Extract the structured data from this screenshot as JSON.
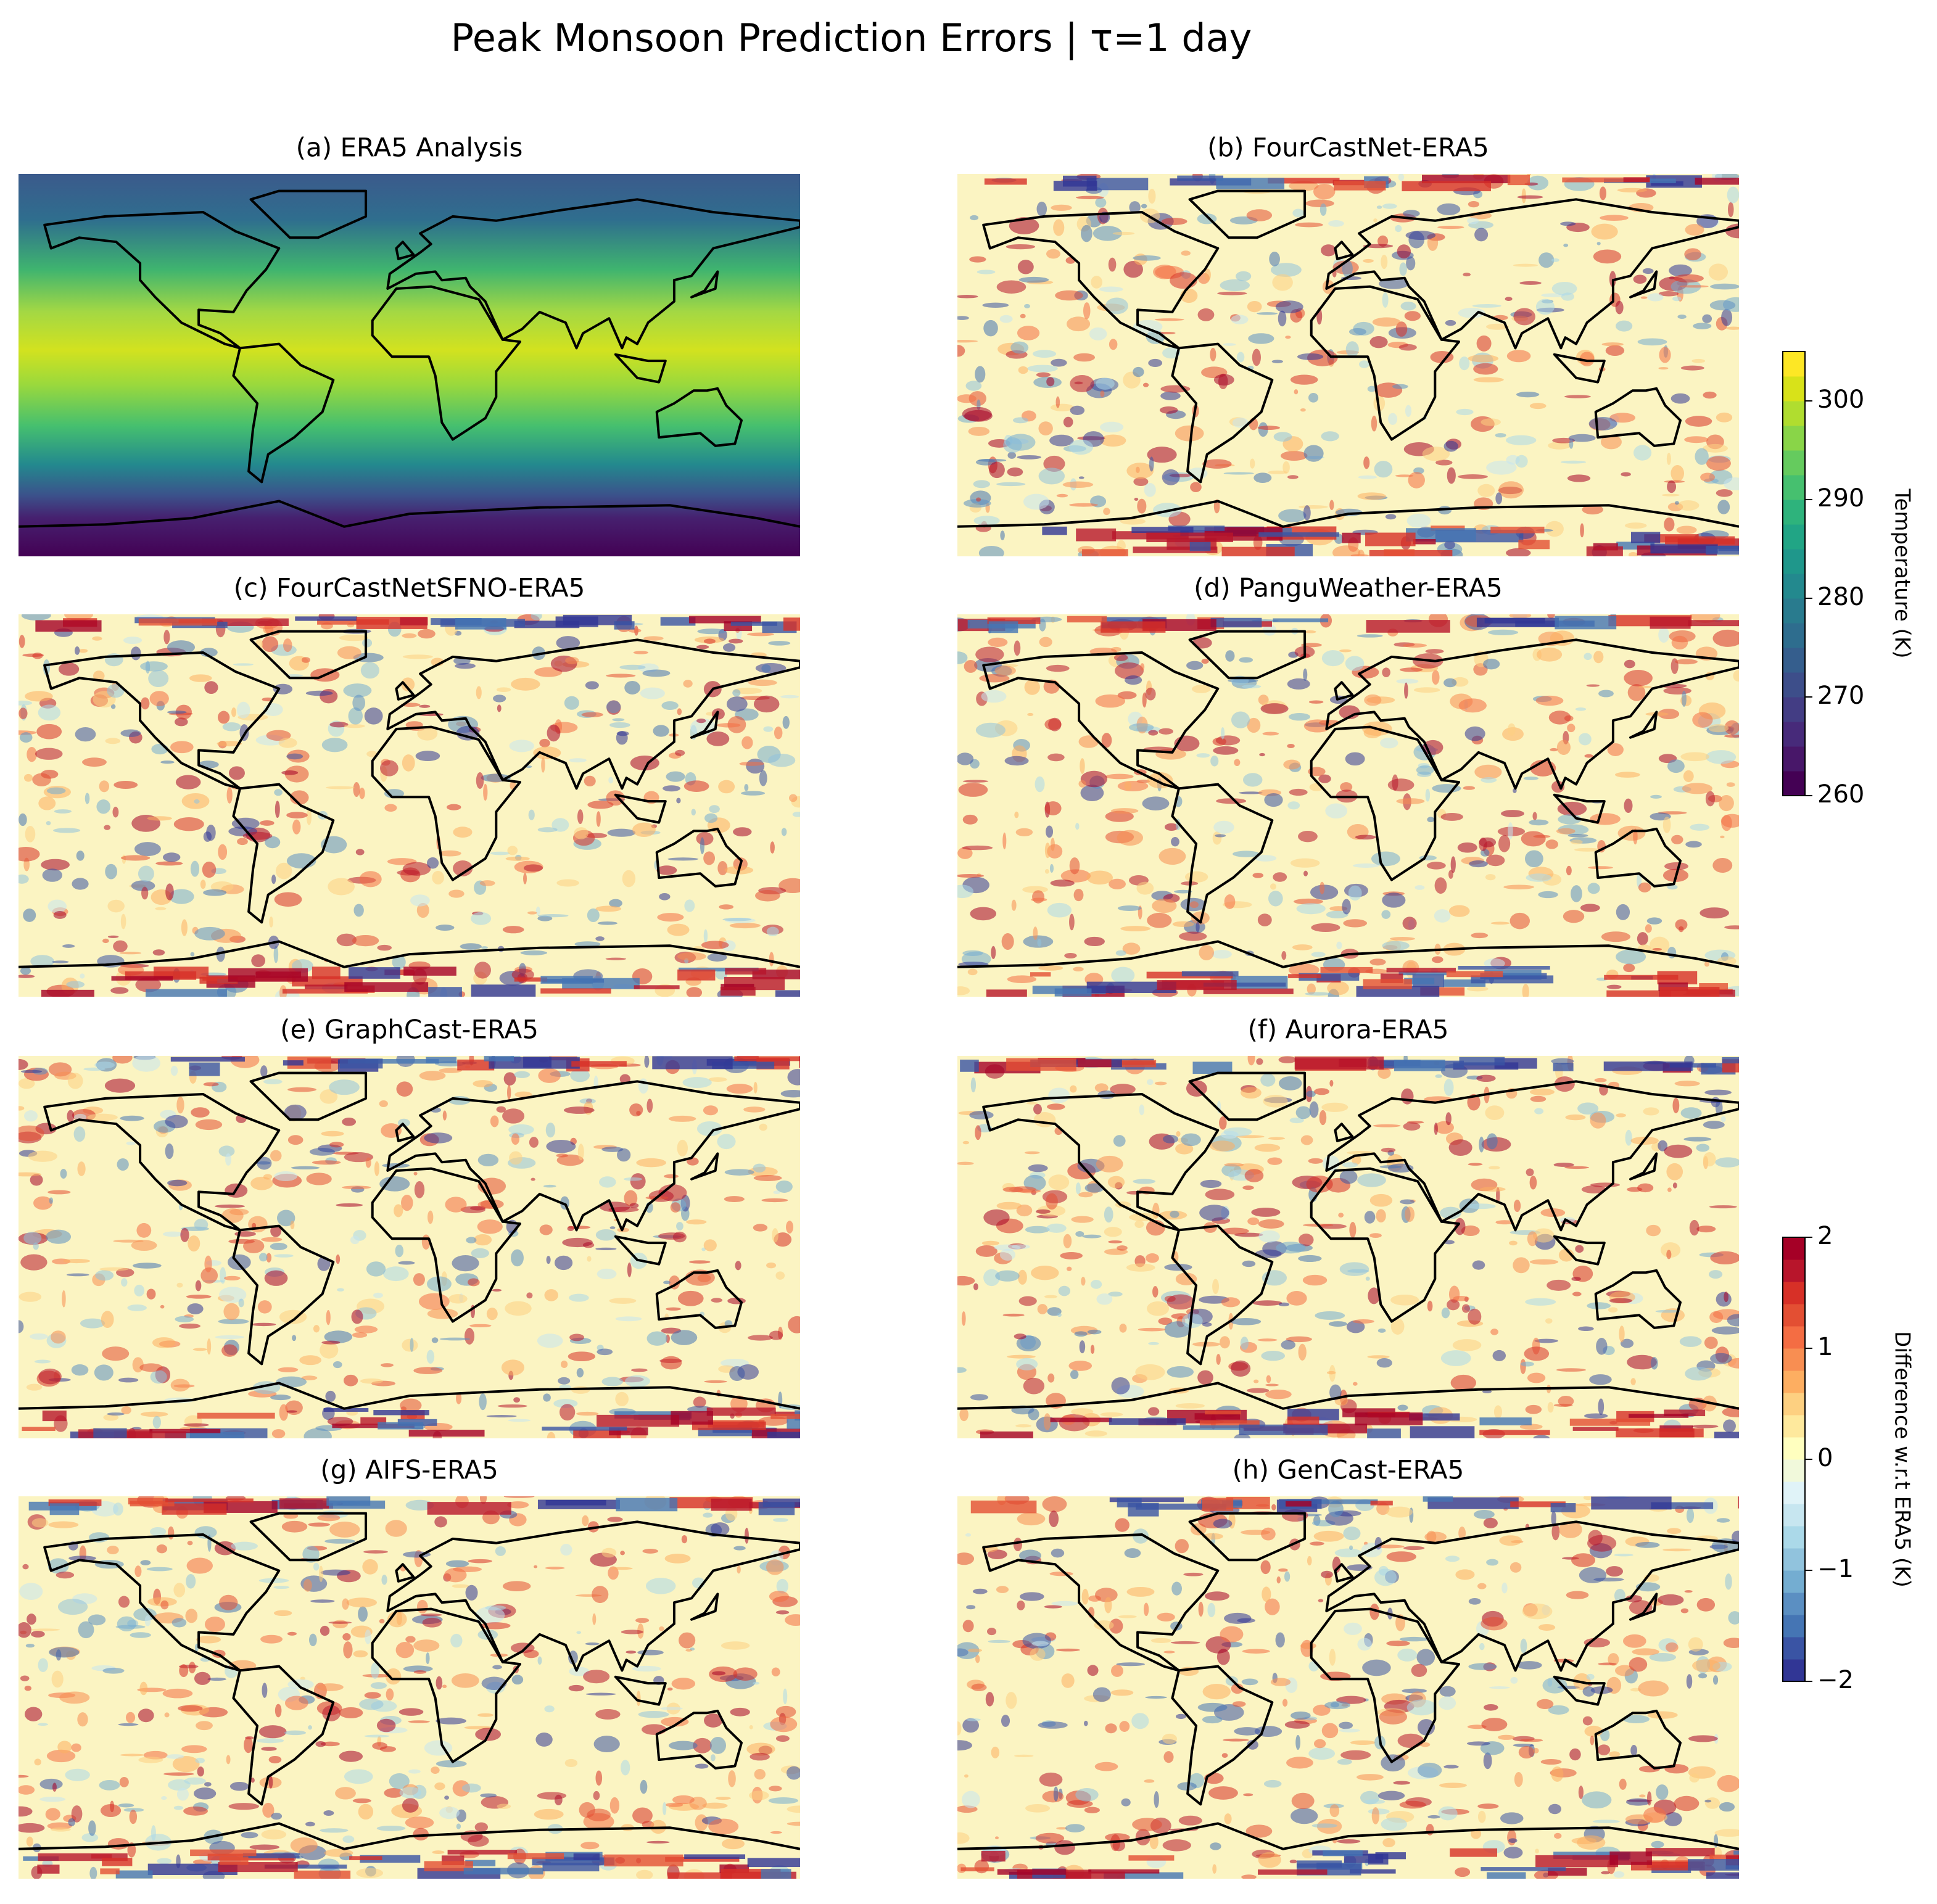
{
  "chart_data": {
    "type": "map_grid",
    "title": "Peak Monsoon Prediction Errors | τ=1 day",
    "panels": [
      {
        "title": "(a) ERA5 Analysis"
      },
      {
        "title": "(b) FourCastNet-ERA5"
      },
      {
        "title": "(c) FourCastNetSFNO-ERA5"
      },
      {
        "title": "(d) PanguWeather-ERA5"
      },
      {
        "title": "(e) GraphCast-ERA5"
      },
      {
        "title": "(f) Aurora-ERA5"
      },
      {
        "title": "(g) AIFS-ERA5"
      },
      {
        "title": "(h) GenCast-ERA5"
      }
    ],
    "colorbars": [
      {
        "label": "Temperature (K)",
        "lim": [
          260,
          305
        ],
        "ticks": [
          260,
          270,
          280,
          290,
          300
        ],
        "colors": [
          "#440154",
          "#481769",
          "#472a7a",
          "#433d84",
          "#3d4e8a",
          "#355e8d",
          "#2e6d8e",
          "#297b8e",
          "#23898e",
          "#1f978b",
          "#21a585",
          "#2eb37c",
          "#46c06f",
          "#65cb5e",
          "#89d548",
          "#b0dd2f",
          "#d8e219",
          "#fde725"
        ]
      },
      {
        "label": "Difference w.r.t ERA5 (K)",
        "lim": [
          -2,
          2
        ],
        "ticks": [
          {
            "value": -2,
            "label": "−2"
          },
          {
            "value": -1,
            "label": "−1"
          },
          0,
          1,
          2
        ],
        "colors": [
          "#313695",
          "#3a54a4",
          "#4575b4",
          "#5b8fc2",
          "#74add1",
          "#91c3dd",
          "#abd9e9",
          "#c7e6f0",
          "#e0f3f8",
          "#f1f9db",
          "#ffffbf",
          "#fee99d",
          "#fdd081",
          "#fdae61",
          "#f88e52",
          "#f46d43",
          "#e34f33",
          "#d73027",
          "#b8152b",
          "#a50026"
        ]
      }
    ]
  }
}
